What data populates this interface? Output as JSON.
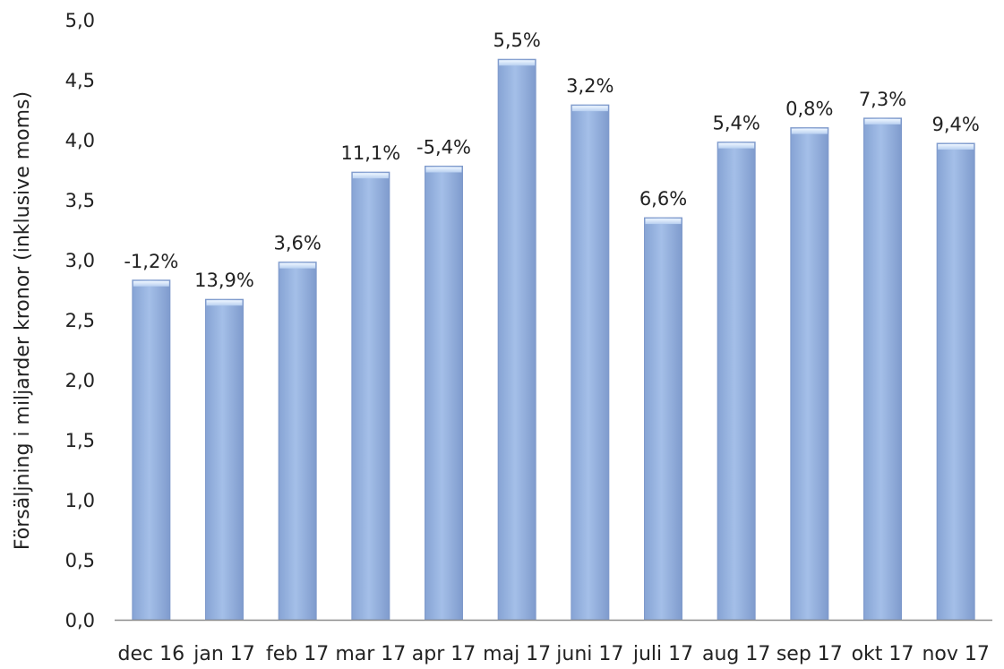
{
  "chart_data": {
    "type": "bar",
    "ylabel": "Försäljning i miljarder kronor (inklusive moms)",
    "ylim": [
      0,
      5
    ],
    "yticks": [
      "0,0",
      "0,5",
      "1,0",
      "1,5",
      "2,0",
      "2,5",
      "3,0",
      "3,5",
      "4,0",
      "4,5",
      "5,0"
    ],
    "grid": false,
    "categories": [
      "dec 16",
      "jan 17",
      "feb 17",
      "mar 17",
      "apr 17",
      "maj 17",
      "juni 17",
      "juli 17",
      "aug 17",
      "sep 17",
      "okt 17",
      "nov 17"
    ],
    "values": [
      2.83,
      2.67,
      2.98,
      3.73,
      3.78,
      4.67,
      4.29,
      3.35,
      3.98,
      4.1,
      4.18,
      3.97
    ],
    "data_labels": [
      "-1,2%",
      "13,9%",
      "3,6%",
      "11,1%",
      "-5,4%",
      "5,5%",
      "3,2%",
      "6,6%",
      "5,4%",
      "0,8%",
      "7,3%",
      "9,4%"
    ],
    "colors": {
      "bar": "#97b3df",
      "bar_edge": "#7f9acb",
      "axis": "#8c8c8c"
    }
  }
}
